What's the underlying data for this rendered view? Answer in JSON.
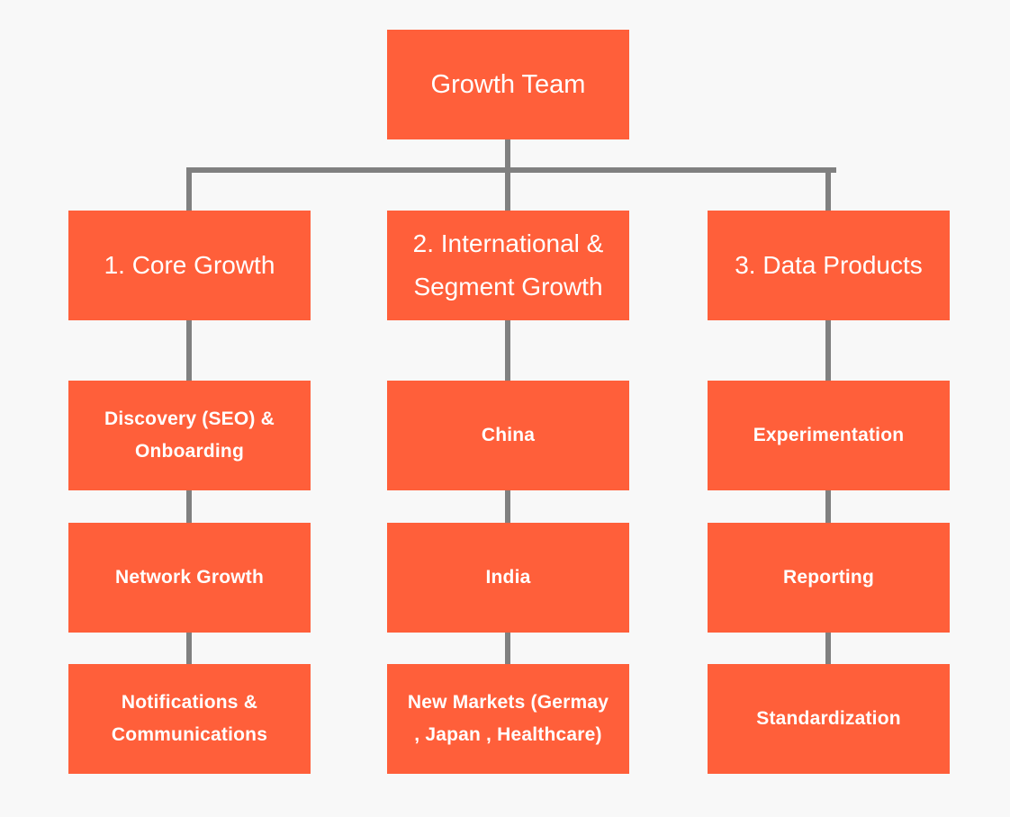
{
  "colors": {
    "box": "#ff5f3a",
    "connector": "#808080",
    "background": "#f8f8f8",
    "text": "#ffffff"
  },
  "root": {
    "lines": [
      "Growth Team"
    ]
  },
  "columns": [
    {
      "title": {
        "lines": [
          "1. Core Growth"
        ]
      },
      "items": [
        {
          "lines": [
            "Discovery (SEO) &",
            "Onboarding"
          ]
        },
        {
          "lines": [
            "Network Growth"
          ]
        },
        {
          "lines": [
            "Notifications &",
            "Communications"
          ]
        }
      ]
    },
    {
      "title": {
        "lines": [
          "2. International &",
          "Segment Growth"
        ]
      },
      "items": [
        {
          "lines": [
            "China"
          ]
        },
        {
          "lines": [
            "India"
          ]
        },
        {
          "lines": [
            "New Markets (Germay",
            ", Japan , Healthcare)"
          ]
        }
      ]
    },
    {
      "title": {
        "lines": [
          "3. Data Products"
        ]
      },
      "items": [
        {
          "lines": [
            "Experimentation"
          ]
        },
        {
          "lines": [
            "Reporting"
          ]
        },
        {
          "lines": [
            "Standardization"
          ]
        }
      ]
    }
  ]
}
